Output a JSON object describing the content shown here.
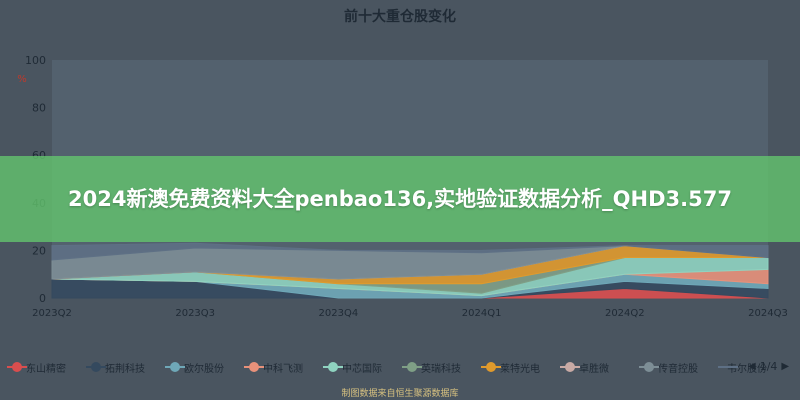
{
  "chart_title": "前十大重仓股变化",
  "banner": {
    "text": "2024新澳免费资料大全penbao136,实地验证数据分析_QHD3.577"
  },
  "footer": {
    "text": "制图数据来自恒生聚源数据库"
  },
  "pager": {
    "text": "1/4",
    "prev": "◀",
    "next": "▶"
  },
  "chart_data": {
    "type": "area",
    "stacked": true,
    "x": [
      "2023Q2",
      "2023Q3",
      "2023Q4",
      "2024Q1",
      "2024Q2",
      "2024Q3"
    ],
    "ylim": [
      0,
      100
    ],
    "yticks": [
      0,
      20,
      40,
      60,
      80,
      100
    ],
    "ylabel": "%",
    "grid": false,
    "legend_position": "bottom",
    "series": [
      {
        "name": "东山精密",
        "color": "#d94e4e",
        "values": [
          0,
          0,
          0,
          0,
          4,
          0
        ]
      },
      {
        "name": "拓荆科技",
        "color": "#34495e",
        "values": [
          8,
          7,
          0,
          0,
          3,
          4
        ]
      },
      {
        "name": "欧尔股份",
        "color": "#6fa8b8",
        "values": [
          0,
          0,
          4,
          1,
          3,
          2
        ]
      },
      {
        "name": "中科飞测",
        "color": "#e8917a",
        "values": [
          0,
          0,
          0,
          0,
          0,
          6
        ]
      },
      {
        "name": "中芯国际",
        "color": "#8fd3c0",
        "values": [
          0,
          4,
          2,
          1,
          7,
          5
        ]
      },
      {
        "name": "英瑞科技",
        "color": "#7f9f86",
        "values": [
          0,
          0,
          0,
          4,
          0,
          0
        ]
      },
      {
        "name": "莱特光电",
        "color": "#e09a2c",
        "values": [
          0,
          0,
          2,
          4,
          5,
          0
        ]
      },
      {
        "name": "卓胜微",
        "color": "#c9aaa5",
        "values": [
          0,
          0,
          0,
          0,
          0,
          0
        ]
      },
      {
        "name": "传音控股",
        "color": "#7d8e96",
        "values": [
          8,
          10,
          12,
          9,
          0,
          0
        ]
      },
      {
        "name": "韦尔股份",
        "color": "#5e7085",
        "values": [
          6,
          2,
          0,
          1,
          0,
          5
        ]
      }
    ]
  }
}
